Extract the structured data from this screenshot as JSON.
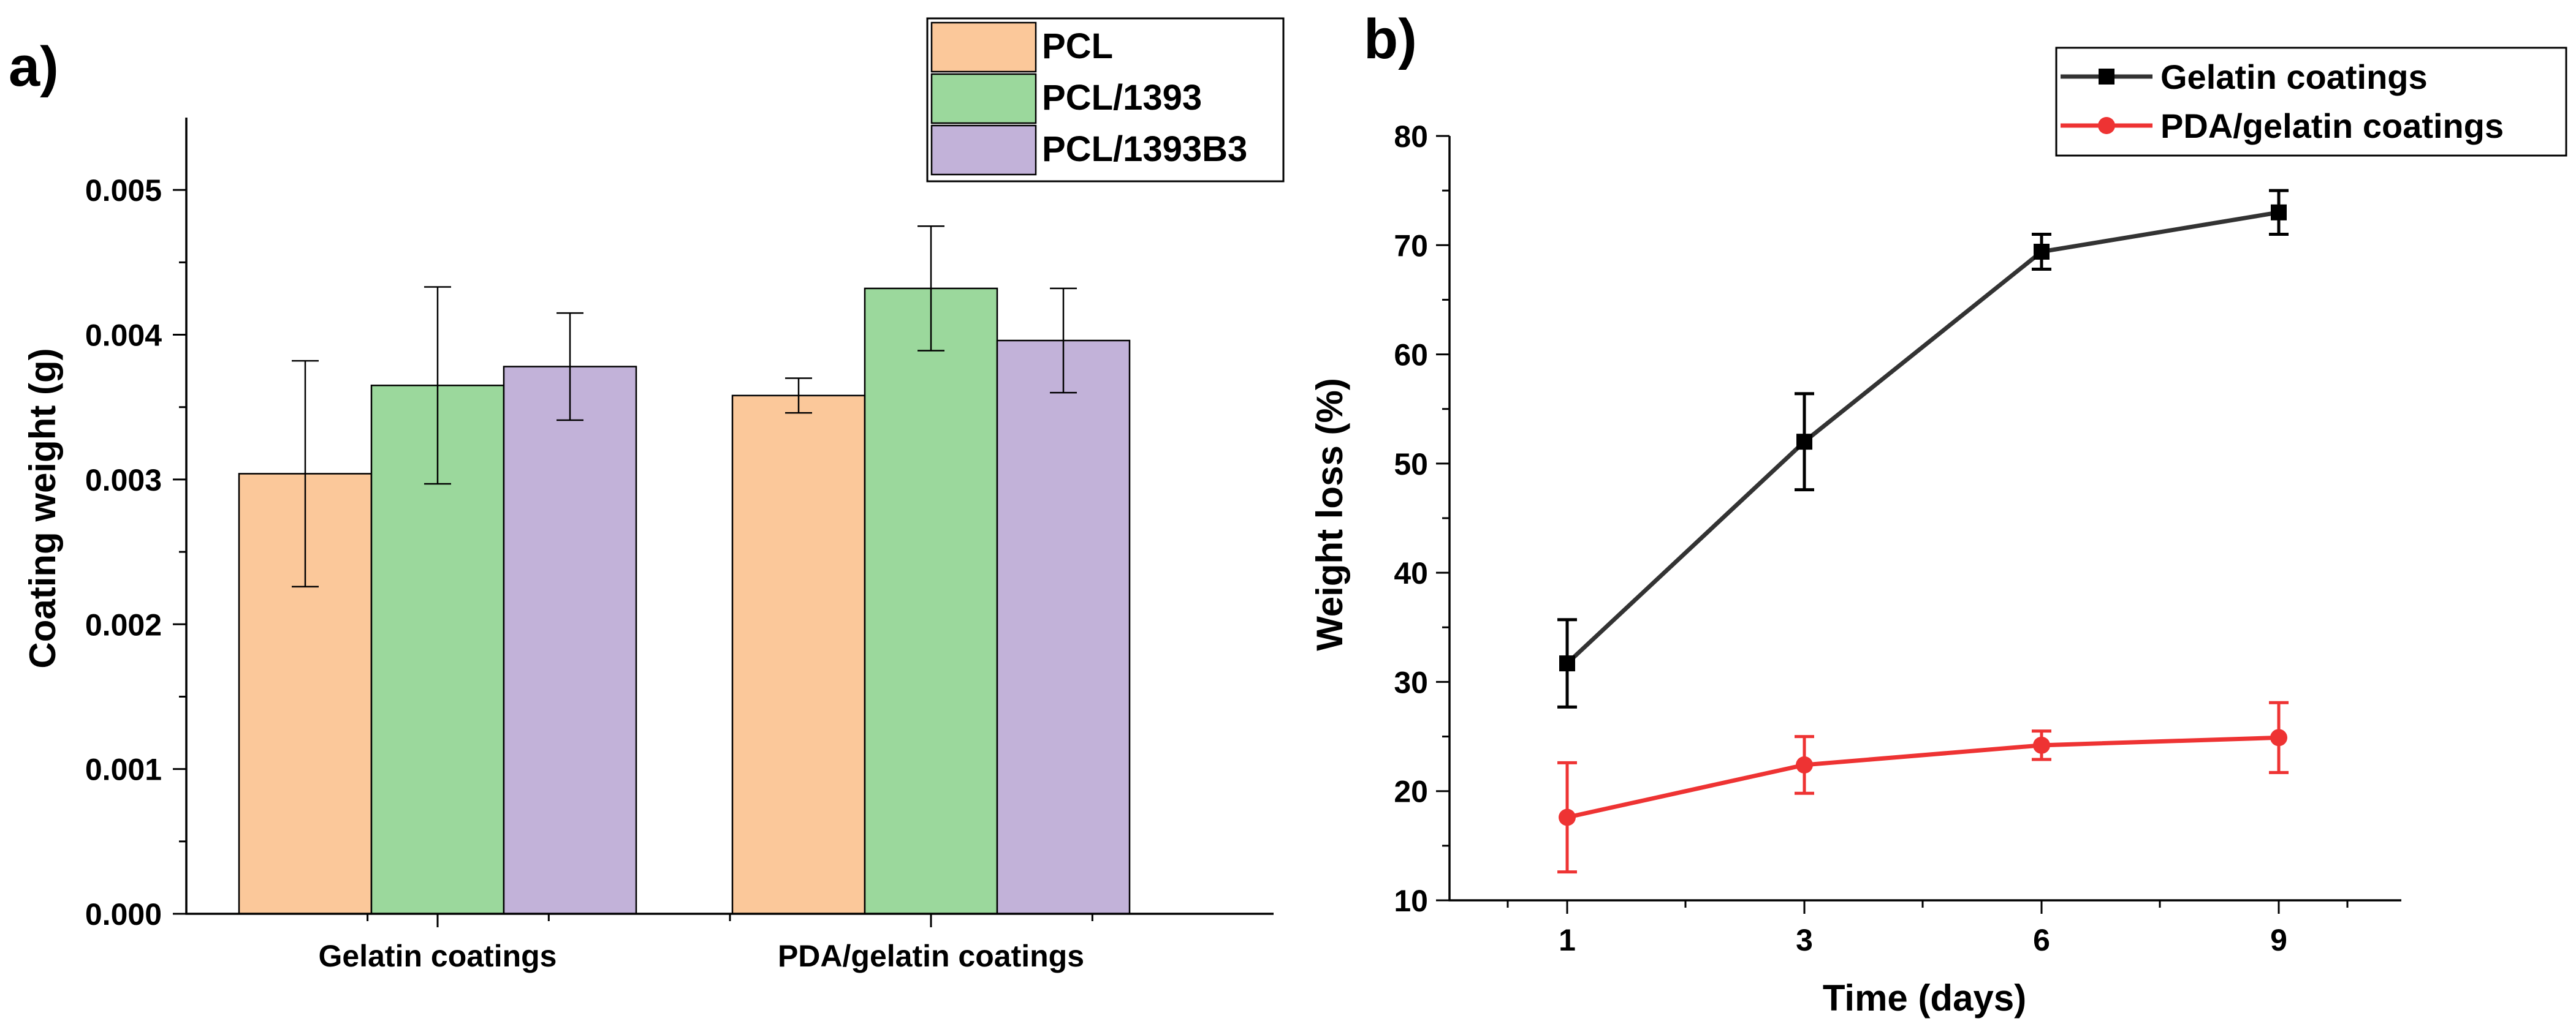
{
  "chart_data": [
    {
      "panel_label": "a)",
      "type": "bar",
      "title": "",
      "xlabel": "",
      "ylabel": "Coating weight (g)",
      "ylim": [
        0,
        0.0055
      ],
      "yticks": [
        "0.000",
        "0.001",
        "0.002",
        "0.003",
        "0.004",
        "0.005"
      ],
      "categories": [
        "Gelatin coatings",
        "PDA/gelatin coatings"
      ],
      "series": [
        {
          "name": "PCL",
          "color": "#FBC89A",
          "values": [
            0.00304,
            0.00358
          ],
          "errors": [
            0.00078,
            0.00012
          ]
        },
        {
          "name": "PCL/1393",
          "color": "#9BD89C",
          "values": [
            0.00365,
            0.00432
          ],
          "errors": [
            0.00068,
            0.00043
          ]
        },
        {
          "name": "PCL/1393B3",
          "color": "#C2B2D9",
          "values": [
            0.00378,
            0.00396
          ],
          "errors": [
            0.00037,
            0.00036
          ]
        }
      ],
      "legend_position": "top-right",
      "grid": false
    },
    {
      "panel_label": "b)",
      "type": "line",
      "title": "",
      "xlabel": "Time (days)",
      "ylabel": "Weight loss (%)",
      "ylim": [
        10,
        80
      ],
      "yticks": [
        "10",
        "20",
        "30",
        "40",
        "50",
        "60",
        "70",
        "80"
      ],
      "x": [
        "1",
        "3",
        "6",
        "9"
      ],
      "series": [
        {
          "name": "Gelatin coatings",
          "color": "#333333",
          "marker": "square",
          "values": [
            31.7,
            52.0,
            69.4,
            73.0
          ],
          "errors": [
            4.0,
            4.4,
            1.6,
            2.0
          ]
        },
        {
          "name": "PDA/gelatin coatings",
          "color": "#EE3333",
          "marker": "circle",
          "values": [
            17.6,
            22.4,
            24.2,
            24.9
          ],
          "errors": [
            5.0,
            2.6,
            1.3,
            3.2
          ]
        }
      ],
      "legend_position": "top-right",
      "grid": false
    }
  ]
}
